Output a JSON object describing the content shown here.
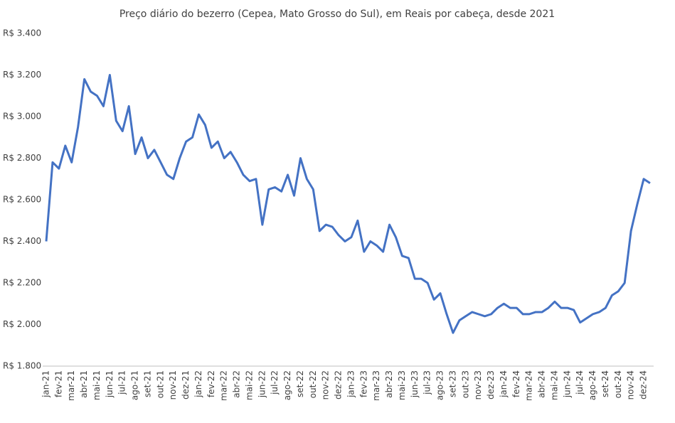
{
  "chart_data": {
    "type": "line",
    "title": "Preço diário do bezerro (Cepea, Mato Grosso do Sul), em Reais por cabeça, desde 2021",
    "categories": [
      "jan-21",
      null,
      "fev-21",
      null,
      "mar-21",
      null,
      "abr-21",
      null,
      "mai-21",
      null,
      "jun-21",
      null,
      "jul-21",
      null,
      "ago-21",
      null,
      "set-21",
      null,
      "out-21",
      null,
      "nov-21",
      null,
      "dez-21",
      null,
      "jan-22",
      null,
      "fev-22",
      null,
      "mar-22",
      null,
      "abr-22",
      null,
      "mai-22",
      null,
      "jun-22",
      null,
      "jul-22",
      null,
      "ago-22",
      null,
      "set-22",
      null,
      "out-22",
      null,
      "nov-22",
      null,
      "dez-22",
      null,
      "jan-23",
      null,
      "fev-23",
      null,
      "mar-23",
      null,
      "abr-23",
      null,
      "mai-23",
      null,
      "jun-23",
      null,
      "jul-23",
      null,
      "ago-23",
      null,
      "set-23",
      null,
      "out-23",
      null,
      "nov-23",
      null,
      "dez-23",
      null,
      "jan-24",
      null,
      "fev-24",
      null,
      "mar-24",
      null,
      "abr-24",
      null,
      "mai-24",
      null,
      "jun-24",
      null,
      "jul-24",
      null,
      "ago-24",
      null,
      "set-24",
      null,
      "out-24",
      null,
      "nov-24",
      null,
      "dez-24",
      null
    ],
    "values": [
      2400,
      2780,
      2750,
      2860,
      2780,
      2950,
      3180,
      3120,
      3100,
      3050,
      3200,
      2980,
      2930,
      3050,
      2820,
      2900,
      2800,
      2840,
      2780,
      2720,
      2700,
      2800,
      2880,
      2900,
      3010,
      2960,
      2850,
      2880,
      2800,
      2830,
      2780,
      2720,
      2690,
      2700,
      2480,
      2650,
      2660,
      2640,
      2720,
      2620,
      2800,
      2700,
      2650,
      2450,
      2480,
      2470,
      2430,
      2400,
      2420,
      2500,
      2350,
      2400,
      2380,
      2350,
      2480,
      2420,
      2330,
      2320,
      2220,
      2220,
      2200,
      2120,
      2150,
      2050,
      1960,
      2020,
      2040,
      2060,
      2050,
      2040,
      2050,
      2080,
      2100,
      2080,
      2080,
      2050,
      2050,
      2060,
      2060,
      2080,
      2110,
      2080,
      2080,
      2070,
      2010,
      2030,
      2050,
      2060,
      2080,
      2140,
      2160,
      2200,
      2450,
      2580,
      2700,
      2680
    ],
    "color": "#4472c4",
    "ylim": [
      1800,
      3400
    ],
    "yticks": [
      {
        "value": 1800,
        "label": "R$ 1.800"
      },
      {
        "value": 2000,
        "label": "R$ 2.000"
      },
      {
        "value": 2200,
        "label": "R$ 2.200"
      },
      {
        "value": 2400,
        "label": "R$ 2.400"
      },
      {
        "value": 2600,
        "label": "R$ 2.600"
      },
      {
        "value": 2800,
        "label": "R$ 2.800"
      },
      {
        "value": 3000,
        "label": "R$ 3.000"
      },
      {
        "value": 3200,
        "label": "R$ 3.200"
      },
      {
        "value": 3400,
        "label": "R$ 3.400"
      }
    ],
    "grid": false
  }
}
